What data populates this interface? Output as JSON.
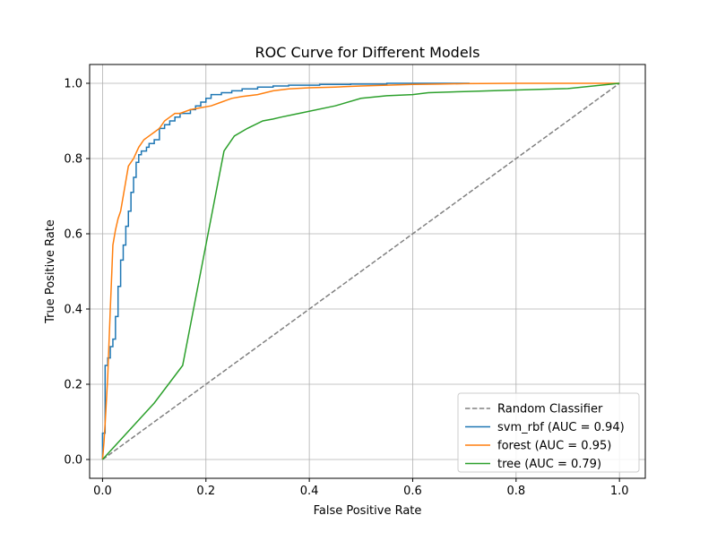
{
  "chart_data": {
    "type": "line",
    "title": "ROC Curve for Different Models",
    "xlabel": "False Positive Rate",
    "ylabel": "True Positive Rate",
    "xlim": [
      -0.025,
      1.05
    ],
    "ylim": [
      -0.05,
      1.05
    ],
    "xticks": [
      0.0,
      0.2,
      0.4,
      0.6,
      0.8,
      1.0
    ],
    "yticks": [
      0.0,
      0.2,
      0.4,
      0.6,
      0.8,
      1.0
    ],
    "xtick_labels": [
      "0.0",
      "0.2",
      "0.4",
      "0.6",
      "0.8",
      "1.0"
    ],
    "ytick_labels": [
      "0.0",
      "0.2",
      "0.4",
      "0.6",
      "0.8",
      "1.0"
    ],
    "grid": true,
    "legend_position": "lower-right",
    "series": [
      {
        "name": "Random Classifier",
        "color": "#808080",
        "dash": true,
        "step": false,
        "x": [
          0.0,
          1.0
        ],
        "y": [
          0.0,
          1.0
        ]
      },
      {
        "name": "svm_rbf (AUC = 0.94)",
        "color": "#1f77b4",
        "dash": false,
        "step": true,
        "x": [
          0.0,
          0.0,
          0.005,
          0.005,
          0.01,
          0.01,
          0.015,
          0.015,
          0.02,
          0.02,
          0.025,
          0.025,
          0.03,
          0.03,
          0.035,
          0.035,
          0.04,
          0.04,
          0.045,
          0.045,
          0.05,
          0.05,
          0.055,
          0.055,
          0.06,
          0.06,
          0.065,
          0.065,
          0.07,
          0.07,
          0.075,
          0.075,
          0.08,
          0.08,
          0.085,
          0.085,
          0.09,
          0.09,
          0.1,
          0.1,
          0.11,
          0.11,
          0.12,
          0.12,
          0.13,
          0.13,
          0.14,
          0.14,
          0.15,
          0.15,
          0.16,
          0.16,
          0.17,
          0.17,
          0.18,
          0.18,
          0.19,
          0.19,
          0.2,
          0.2,
          0.21,
          0.21,
          0.23,
          0.23,
          0.25,
          0.25,
          0.27,
          0.27,
          0.3,
          0.3,
          0.33,
          0.33,
          0.36,
          0.36,
          0.42,
          0.42,
          0.48,
          0.48,
          0.55,
          0.55,
          0.71
        ],
        "y": [
          0.0,
          0.07,
          0.07,
          0.25,
          0.25,
          0.27,
          0.27,
          0.3,
          0.3,
          0.32,
          0.32,
          0.38,
          0.38,
          0.46,
          0.46,
          0.53,
          0.53,
          0.57,
          0.57,
          0.62,
          0.62,
          0.66,
          0.66,
          0.71,
          0.71,
          0.75,
          0.75,
          0.79,
          0.79,
          0.81,
          0.81,
          0.82,
          0.82,
          0.82,
          0.82,
          0.83,
          0.83,
          0.84,
          0.84,
          0.85,
          0.85,
          0.88,
          0.88,
          0.89,
          0.89,
          0.9,
          0.9,
          0.91,
          0.91,
          0.92,
          0.92,
          0.92,
          0.92,
          0.93,
          0.93,
          0.94,
          0.94,
          0.95,
          0.95,
          0.96,
          0.96,
          0.97,
          0.97,
          0.975,
          0.975,
          0.98,
          0.98,
          0.985,
          0.985,
          0.99,
          0.99,
          0.993,
          0.993,
          0.995,
          0.995,
          0.997,
          0.997,
          0.998,
          0.998,
          1.0,
          1.0
        ]
      },
      {
        "name": "forest (AUC = 0.95)",
        "color": "#ff7f0e",
        "dash": false,
        "step": false,
        "x": [
          0.0,
          0.003,
          0.006,
          0.01,
          0.015,
          0.018,
          0.02,
          0.025,
          0.03,
          0.035,
          0.04,
          0.045,
          0.05,
          0.055,
          0.06,
          0.07,
          0.08,
          0.09,
          0.1,
          0.11,
          0.12,
          0.13,
          0.14,
          0.15,
          0.17,
          0.19,
          0.21,
          0.23,
          0.25,
          0.27,
          0.3,
          0.33,
          0.36,
          0.4,
          0.45,
          0.5,
          0.55,
          0.6,
          0.65,
          0.7,
          0.8,
          0.9,
          1.0
        ],
        "y": [
          0.0,
          0.05,
          0.12,
          0.22,
          0.4,
          0.5,
          0.57,
          0.61,
          0.64,
          0.66,
          0.7,
          0.74,
          0.78,
          0.79,
          0.8,
          0.83,
          0.85,
          0.86,
          0.87,
          0.88,
          0.9,
          0.91,
          0.92,
          0.92,
          0.93,
          0.935,
          0.94,
          0.95,
          0.96,
          0.965,
          0.97,
          0.98,
          0.985,
          0.988,
          0.99,
          0.993,
          0.995,
          0.997,
          0.998,
          0.999,
          1.0,
          1.0,
          1.0
        ]
      },
      {
        "name": "tree (AUC = 0.79)",
        "color": "#2ca02c",
        "dash": false,
        "step": false,
        "x": [
          0.0,
          0.1,
          0.155,
          0.235,
          0.255,
          0.28,
          0.31,
          0.33,
          0.345,
          0.38,
          0.45,
          0.5,
          0.55,
          0.6,
          0.63,
          0.7,
          0.8,
          0.9,
          1.0
        ],
        "y": [
          0.0,
          0.15,
          0.25,
          0.82,
          0.86,
          0.88,
          0.9,
          0.905,
          0.91,
          0.92,
          0.94,
          0.96,
          0.967,
          0.97,
          0.975,
          0.978,
          0.982,
          0.986,
          1.0
        ]
      }
    ]
  }
}
